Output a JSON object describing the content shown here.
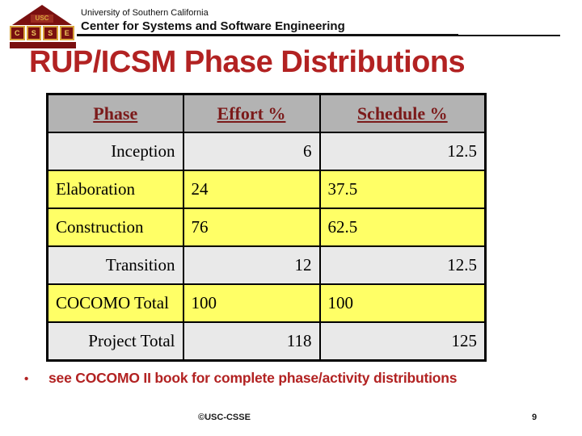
{
  "header": {
    "university": "University of Southern California",
    "center": "Center for Systems and Software Engineering",
    "logo": {
      "usc": "USC",
      "letters": [
        "C",
        "S",
        "S",
        "E"
      ]
    }
  },
  "title": "RUP/ICSM Phase Distributions",
  "table": {
    "columns": [
      "Phase",
      "Effort %",
      "Schedule %"
    ],
    "rows": [
      {
        "phase": "Inception",
        "effort": "6",
        "schedule": "12.5"
      },
      {
        "phase": "Elaboration",
        "effort": "24",
        "schedule": "37.5"
      },
      {
        "phase": "Construction",
        "effort": "76",
        "schedule": "62.5"
      },
      {
        "phase": "Transition",
        "effort": "12",
        "schedule": "12.5"
      },
      {
        "phase": "COCOMO Total",
        "effort": "100",
        "schedule": "100"
      },
      {
        "phase": "Project Total",
        "effort": "118",
        "schedule": "125"
      }
    ]
  },
  "bullet": {
    "marker": "•",
    "text": "see COCOMO II book for complete phase/activity distributions"
  },
  "footer": {
    "copyright": "©USC-CSSE",
    "page_number": "9"
  },
  "colors": {
    "title_red": "#B22222",
    "bullet_red": "#B22222",
    "header_red": "#7B1A1A",
    "header_gray": "#B3B3B3",
    "row_gray": "#E9E9E9",
    "row_yellow": "#FFFF66",
    "logo_darkred": "#7A1010",
    "logo_gold": "#D9A43B"
  }
}
